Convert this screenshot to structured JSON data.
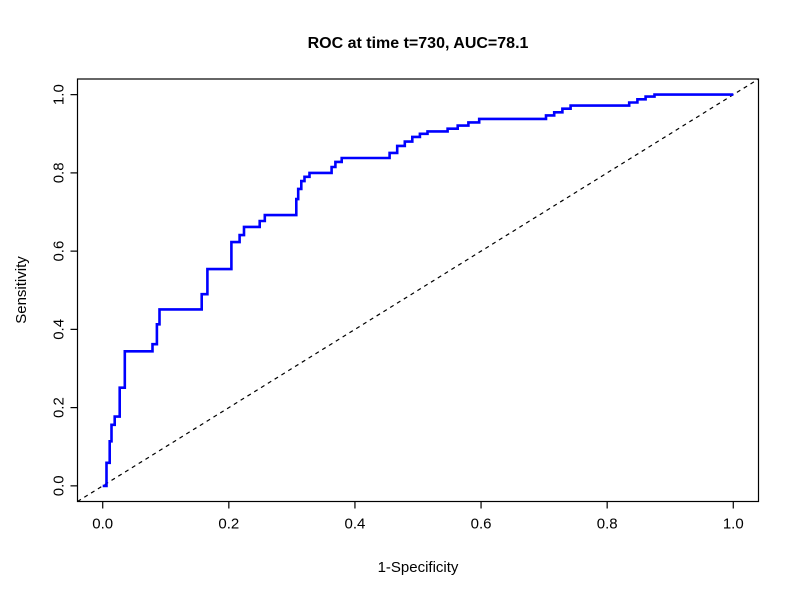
{
  "chart_data": {
    "type": "line",
    "title": "ROC at time t=730, AUC=78.1",
    "time": 730,
    "auc": 78.1,
    "xlabel": "1-Specificity",
    "ylabel": "Sensitivity",
    "x_ticks": [
      0.0,
      0.2,
      0.4,
      0.6,
      0.8,
      1.0
    ],
    "y_ticks": [
      0.0,
      0.2,
      0.4,
      0.6,
      0.8,
      1.0
    ],
    "xlim": [
      -0.04,
      1.04
    ],
    "ylim": [
      -0.04,
      1.04
    ],
    "grid": false,
    "legend": "none",
    "series": [
      {
        "name": "roc-curve",
        "color": "#0000FF",
        "line_style": "solid-step",
        "line_width": 2.6,
        "points": [
          [
            0,
            0
          ],
          [
            0.006,
            0
          ],
          [
            0.006,
            0.059
          ],
          [
            0.011,
            0.059
          ],
          [
            0.011,
            0.114
          ],
          [
            0.014,
            0.114
          ],
          [
            0.014,
            0.156
          ],
          [
            0.019,
            0.156
          ],
          [
            0.019,
            0.177
          ],
          [
            0.027,
            0.177
          ],
          [
            0.027,
            0.251
          ],
          [
            0.035,
            0.251
          ],
          [
            0.035,
            0.344
          ],
          [
            0.079,
            0.344
          ],
          [
            0.079,
            0.362
          ],
          [
            0.086,
            0.362
          ],
          [
            0.086,
            0.413
          ],
          [
            0.09,
            0.413
          ],
          [
            0.09,
            0.451
          ],
          [
            0.157,
            0.451
          ],
          [
            0.157,
            0.49
          ],
          [
            0.166,
            0.49
          ],
          [
            0.166,
            0.554
          ],
          [
            0.204,
            0.554
          ],
          [
            0.204,
            0.623
          ],
          [
            0.217,
            0.623
          ],
          [
            0.217,
            0.641
          ],
          [
            0.224,
            0.641
          ],
          [
            0.224,
            0.662
          ],
          [
            0.249,
            0.662
          ],
          [
            0.249,
            0.677
          ],
          [
            0.257,
            0.677
          ],
          [
            0.257,
            0.692
          ],
          [
            0.307,
            0.692
          ],
          [
            0.307,
            0.733
          ],
          [
            0.31,
            0.733
          ],
          [
            0.31,
            0.759
          ],
          [
            0.315,
            0.759
          ],
          [
            0.315,
            0.779
          ],
          [
            0.32,
            0.779
          ],
          [
            0.32,
            0.79
          ],
          [
            0.328,
            0.79
          ],
          [
            0.328,
            0.8
          ],
          [
            0.363,
            0.8
          ],
          [
            0.363,
            0.815
          ],
          [
            0.369,
            0.815
          ],
          [
            0.369,
            0.828
          ],
          [
            0.379,
            0.828
          ],
          [
            0.379,
            0.838
          ],
          [
            0.455,
            0.838
          ],
          [
            0.455,
            0.851
          ],
          [
            0.467,
            0.851
          ],
          [
            0.467,
            0.869
          ],
          [
            0.479,
            0.869
          ],
          [
            0.479,
            0.88
          ],
          [
            0.491,
            0.88
          ],
          [
            0.491,
            0.892
          ],
          [
            0.503,
            0.892
          ],
          [
            0.503,
            0.9
          ],
          [
            0.515,
            0.9
          ],
          [
            0.515,
            0.906
          ],
          [
            0.547,
            0.906
          ],
          [
            0.547,
            0.913
          ],
          [
            0.563,
            0.913
          ],
          [
            0.563,
            0.921
          ],
          [
            0.58,
            0.921
          ],
          [
            0.58,
            0.929
          ],
          [
            0.597,
            0.929
          ],
          [
            0.597,
            0.938
          ],
          [
            0.703,
            0.938
          ],
          [
            0.703,
            0.947
          ],
          [
            0.716,
            0.947
          ],
          [
            0.716,
            0.955
          ],
          [
            0.729,
            0.955
          ],
          [
            0.729,
            0.964
          ],
          [
            0.742,
            0.964
          ],
          [
            0.742,
            0.972
          ],
          [
            0.835,
            0.972
          ],
          [
            0.835,
            0.98
          ],
          [
            0.848,
            0.98
          ],
          [
            0.848,
            0.988
          ],
          [
            0.861,
            0.988
          ],
          [
            0.861,
            0.995
          ],
          [
            0.875,
            0.995
          ],
          [
            0.875,
            1
          ],
          [
            1,
            1
          ]
        ]
      },
      {
        "name": "chance-diagonal",
        "color": "#000000",
        "line_style": "dashed",
        "line_width": 1.2,
        "points": [
          [
            -0.04,
            -0.04
          ],
          [
            1.04,
            1.04
          ]
        ]
      }
    ]
  },
  "colors": {
    "curve": "#0000FF",
    "axis": "#000000",
    "background": "#FFFFFF"
  }
}
